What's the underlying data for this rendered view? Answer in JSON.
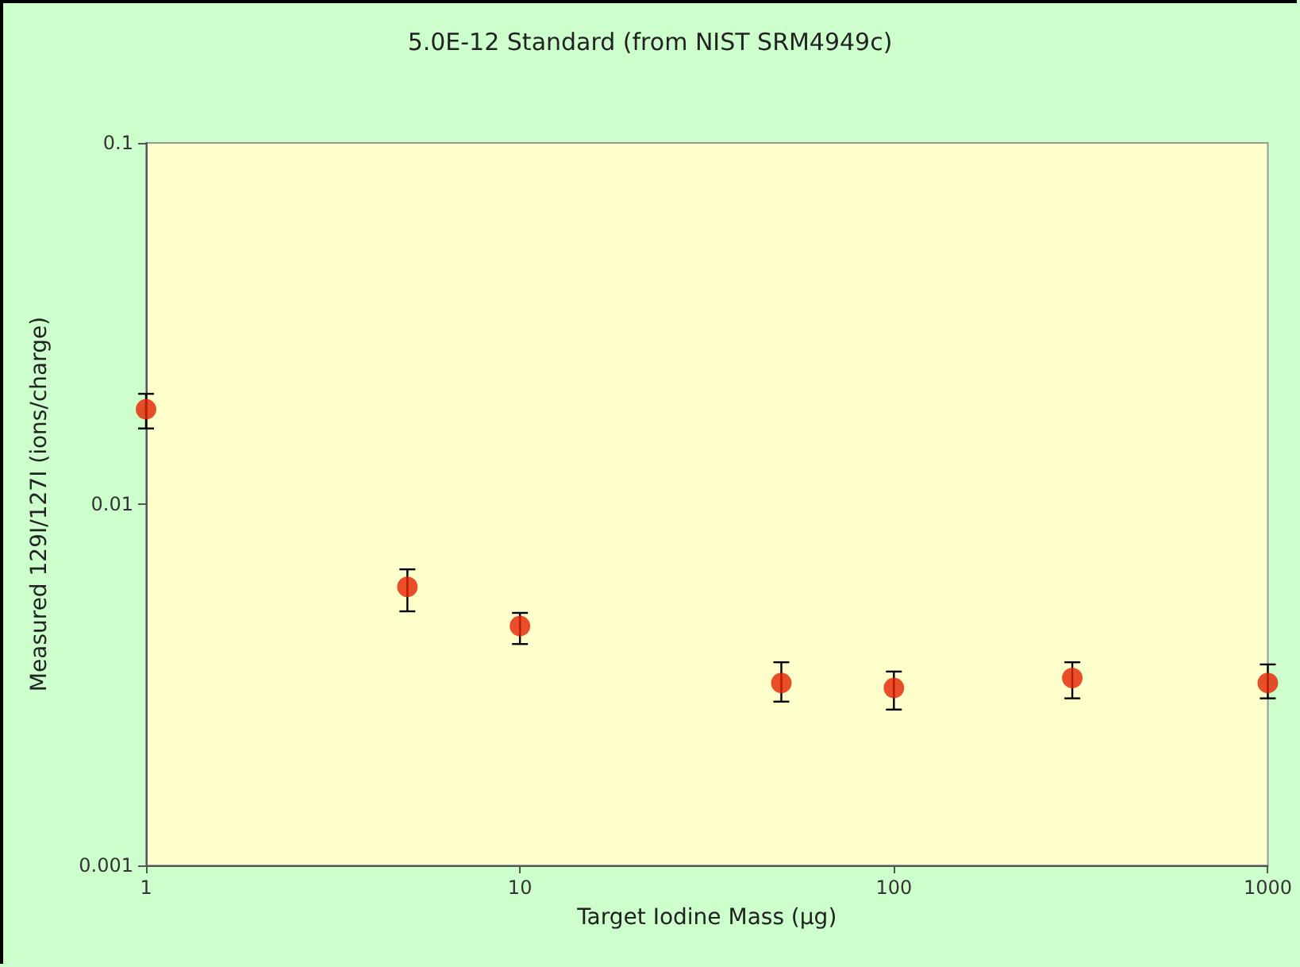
{
  "chart_data": {
    "type": "scatter",
    "title": "5.0E-12 Standard (from NIST SRM4949c)",
    "xlabel": "Target Iodine Mass (μg)",
    "ylabel": "Measured 129I/127I (ions/charge)",
    "x": [
      1,
      5,
      10,
      50,
      100,
      300,
      1000
    ],
    "series": [
      {
        "color": "#e52200",
        "values": [
          0.0183,
          0.0059,
          0.0046,
          0.0032,
          0.0031,
          0.0033,
          0.0032
        ],
        "errors": [
          [
            0.0162,
            0.0202
          ],
          [
            0.00505,
            0.0066
          ],
          [
            0.0041,
            0.005
          ],
          [
            0.00284,
            0.00365
          ],
          [
            0.0027,
            0.00344
          ],
          [
            0.0029,
            0.00365
          ],
          [
            0.0029,
            0.0036
          ]
        ]
      }
    ],
    "log": "xy",
    "xlim": [
      1,
      1000
    ],
    "xticks": [
      1,
      10,
      100,
      1000
    ],
    "ylim": [
      0.001,
      0.1
    ],
    "yticks": [
      0.001,
      0.01,
      0.1
    ],
    "grid": false,
    "marker": "circle"
  }
}
